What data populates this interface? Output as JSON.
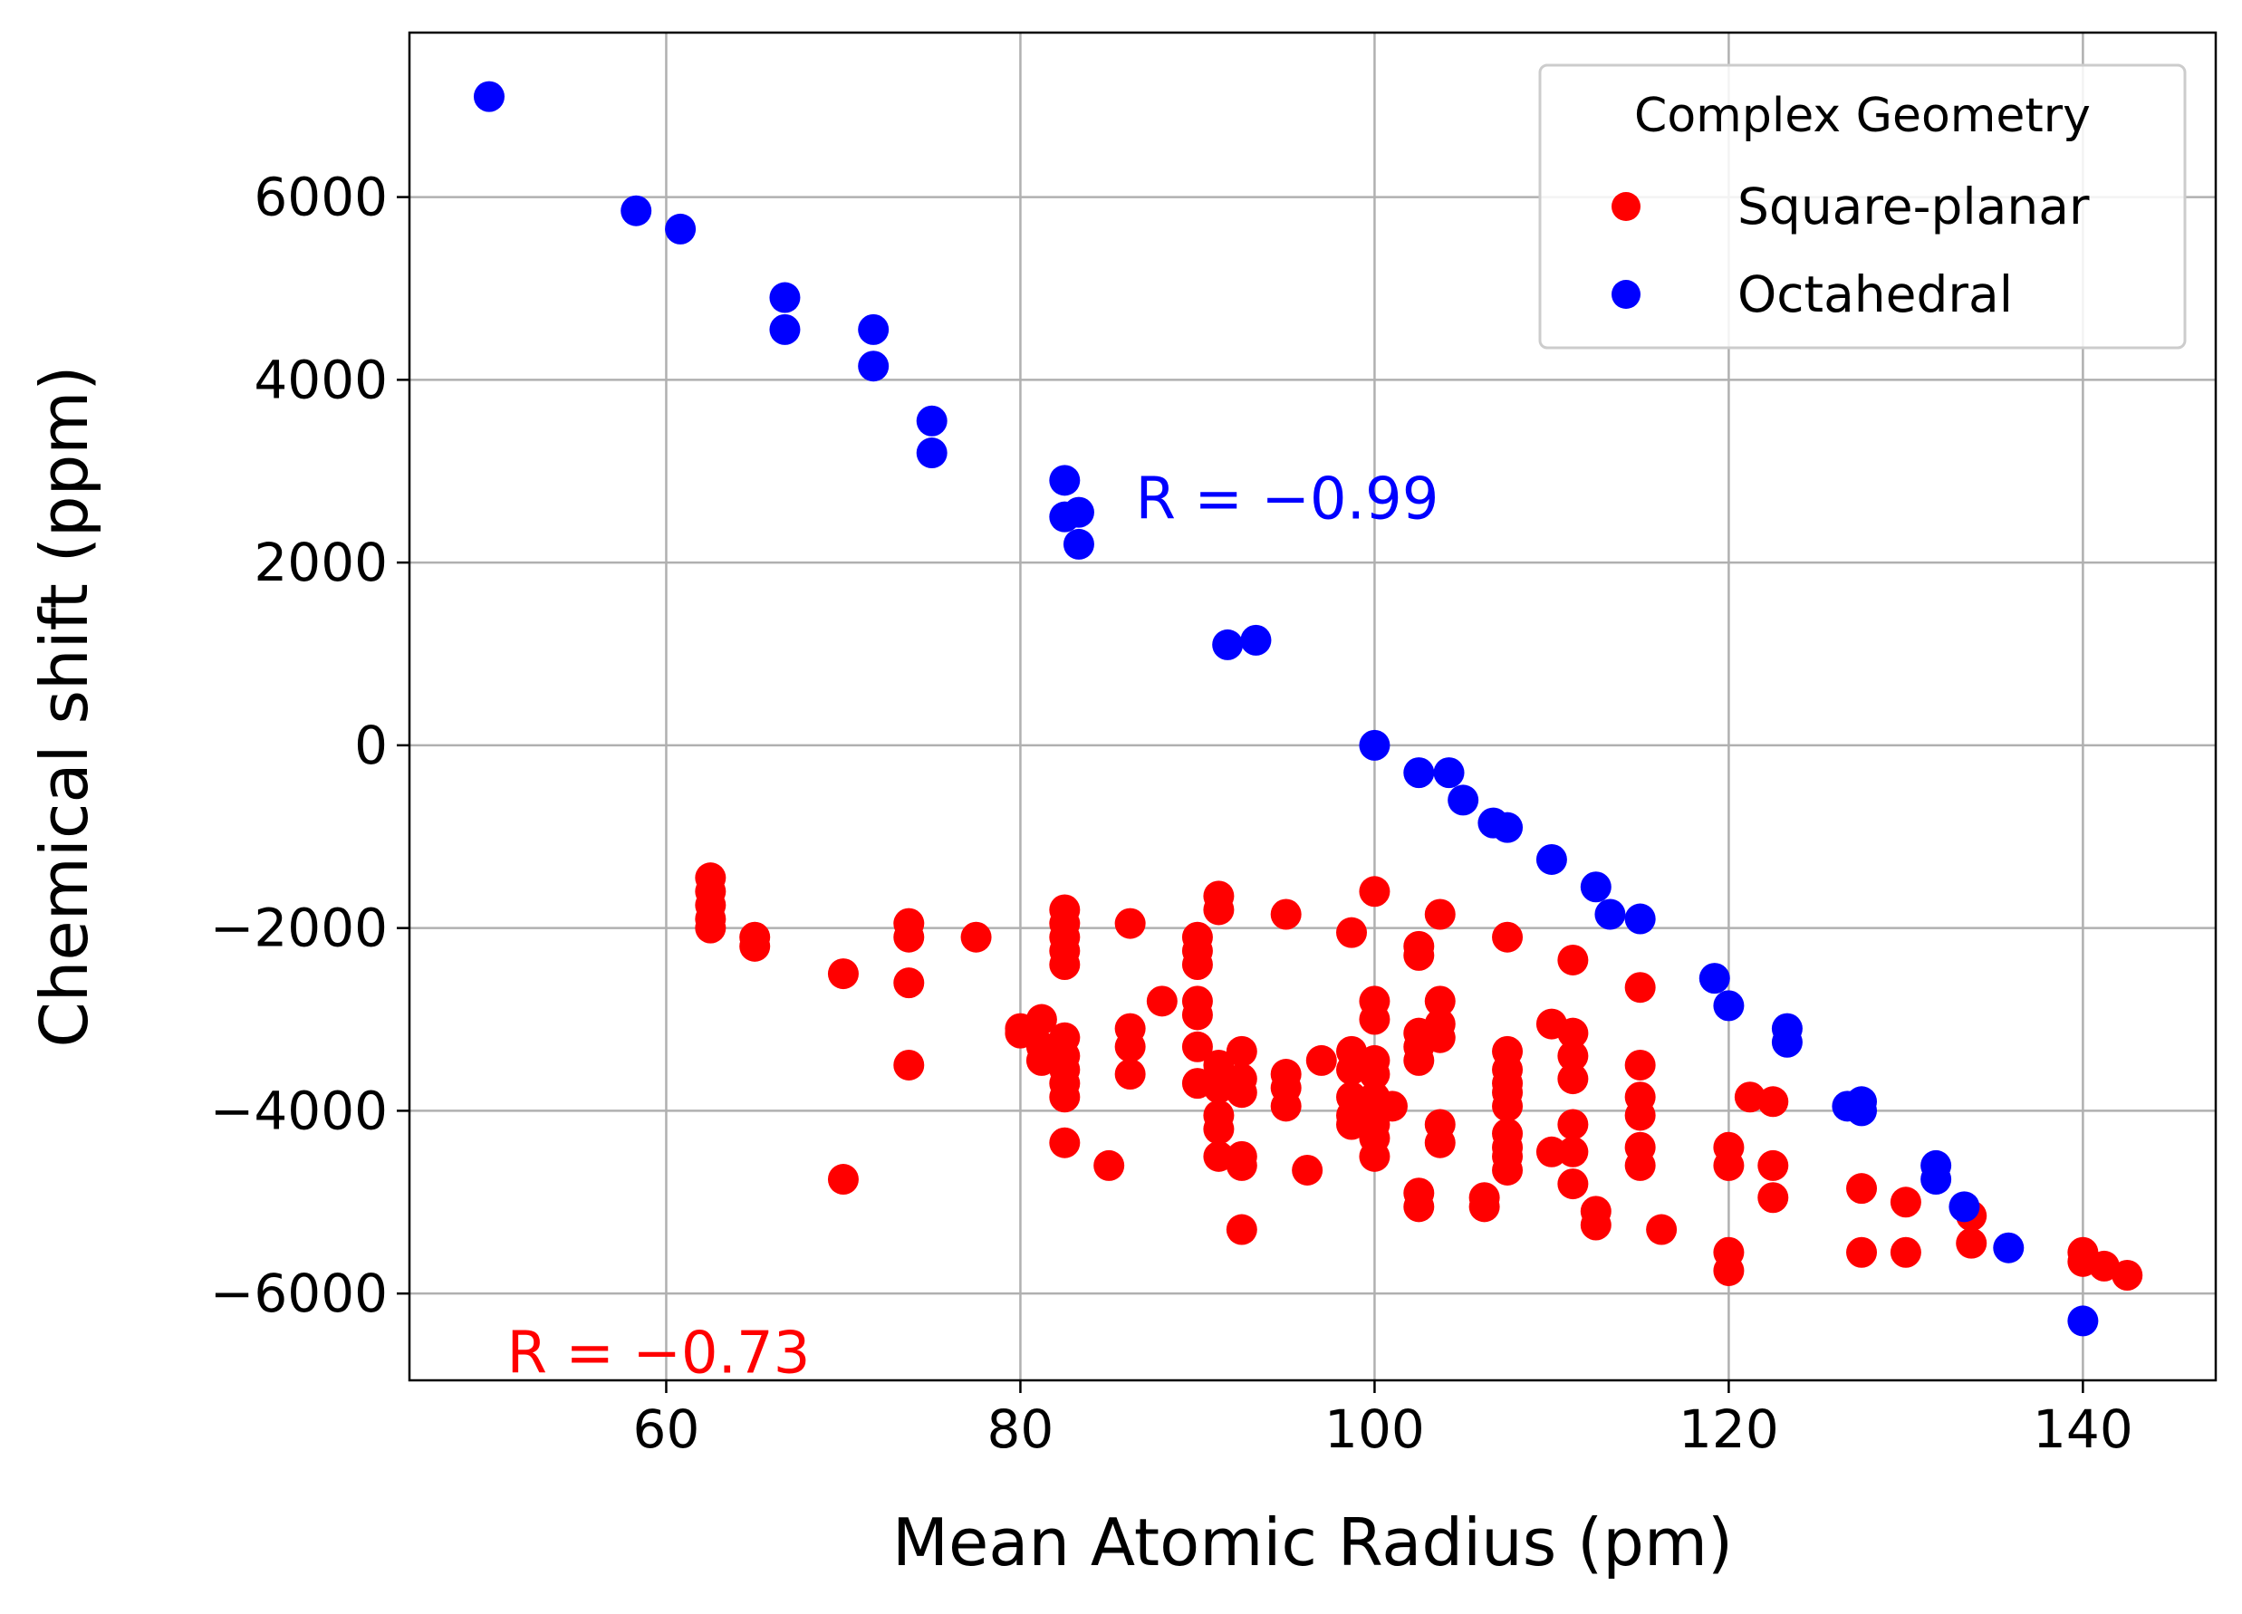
{
  "chart_data": {
    "type": "scatter",
    "xlabel": "Mean Atomic Radius (pm)",
    "ylabel": "Chemical shift (ppm)",
    "xlim": [
      45.5,
      147.5
    ],
    "ylim": [
      -6950,
      7800
    ],
    "xticks": [
      60,
      80,
      100,
      120,
      140
    ],
    "yticks": [
      -6000,
      -4000,
      -2000,
      0,
      2000,
      4000,
      6000
    ],
    "xtick_labels": [
      "60",
      "80",
      "100",
      "120",
      "140"
    ],
    "ytick_labels": [
      "−6000",
      "−4000",
      "−2000",
      "0",
      "2000",
      "4000",
      "6000"
    ],
    "grid": true,
    "legend": {
      "title": "Complex Geometry",
      "placement": "top-right"
    },
    "series": [
      {
        "name": "Square-planar",
        "color": "#ff0000",
        "points": [
          [
            62.5,
            -1450
          ],
          [
            62.5,
            -1600
          ],
          [
            62.5,
            -1750
          ],
          [
            62.5,
            -1900
          ],
          [
            62.5,
            -2000
          ],
          [
            65,
            -2100
          ],
          [
            65,
            -2200
          ],
          [
            70,
            -2500
          ],
          [
            70,
            -4750
          ],
          [
            73.7,
            -1950
          ],
          [
            73.7,
            -2100
          ],
          [
            73.7,
            -2600
          ],
          [
            73.7,
            -3500
          ],
          [
            77.5,
            -2100
          ],
          [
            80,
            -3100
          ],
          [
            80,
            -3150
          ],
          [
            81.2,
            -3000
          ],
          [
            81.2,
            -3300
          ],
          [
            81.2,
            -3450
          ],
          [
            82.5,
            -1800
          ],
          [
            82.5,
            -1950
          ],
          [
            82.5,
            -2100
          ],
          [
            82.5,
            -2250
          ],
          [
            82.5,
            -2400
          ],
          [
            82.5,
            -3200
          ],
          [
            82.5,
            -3400
          ],
          [
            82.5,
            -3550
          ],
          [
            82.5,
            -3700
          ],
          [
            82.5,
            -3850
          ],
          [
            82.5,
            -4350
          ],
          [
            85,
            -4600
          ],
          [
            86.2,
            -1950
          ],
          [
            86.2,
            -3100
          ],
          [
            86.2,
            -3300
          ],
          [
            86.2,
            -3600
          ],
          [
            88,
            -2800
          ],
          [
            90,
            -2100
          ],
          [
            90,
            -2250
          ],
          [
            90,
            -2400
          ],
          [
            90,
            -2800
          ],
          [
            90,
            -2950
          ],
          [
            90,
            -3300
          ],
          [
            90,
            -3700
          ],
          [
            91.2,
            -1650
          ],
          [
            91.2,
            -1800
          ],
          [
            91.2,
            -3500
          ],
          [
            91.2,
            -3750
          ],
          [
            91.2,
            -4050
          ],
          [
            91.2,
            -4200
          ],
          [
            91.2,
            -4500
          ],
          [
            92.5,
            -3350
          ],
          [
            92.5,
            -3650
          ],
          [
            92.5,
            -3800
          ],
          [
            92.5,
            -4500
          ],
          [
            92.5,
            -4600
          ],
          [
            92.5,
            -5300
          ],
          [
            95,
            -1850
          ],
          [
            95,
            -3600
          ],
          [
            95,
            -3750
          ],
          [
            95,
            -3950
          ],
          [
            96.2,
            -4650
          ],
          [
            97,
            -3450
          ],
          [
            98.7,
            -2050
          ],
          [
            98.7,
            -3350
          ],
          [
            98.7,
            -3550
          ],
          [
            98.7,
            -3850
          ],
          [
            98.7,
            -4050
          ],
          [
            98.7,
            -4150
          ],
          [
            100,
            -1600
          ],
          [
            100,
            -2800
          ],
          [
            100,
            -3000
          ],
          [
            100,
            -3450
          ],
          [
            100,
            -3600
          ],
          [
            100,
            -3850
          ],
          [
            100,
            -4000
          ],
          [
            100,
            -4150
          ],
          [
            100,
            -4300
          ],
          [
            100,
            -4500
          ],
          [
            101,
            -3950
          ],
          [
            102.5,
            -2200
          ],
          [
            102.5,
            -2300
          ],
          [
            102.5,
            -3150
          ],
          [
            102.5,
            -3300
          ],
          [
            102.5,
            -3450
          ],
          [
            102.5,
            -4900
          ],
          [
            102.5,
            -5050
          ],
          [
            103.7,
            -1850
          ],
          [
            103.7,
            -2800
          ],
          [
            103.7,
            -3050
          ],
          [
            103.7,
            -3200
          ],
          [
            103.7,
            -4150
          ],
          [
            103.7,
            -4350
          ],
          [
            106.2,
            -4950
          ],
          [
            106.2,
            -5050
          ],
          [
            107.5,
            -2100
          ],
          [
            107.5,
            -3350
          ],
          [
            107.5,
            -3550
          ],
          [
            107.5,
            -3700
          ],
          [
            107.5,
            -3800
          ],
          [
            107.5,
            -3950
          ],
          [
            107.5,
            -4250
          ],
          [
            107.5,
            -4400
          ],
          [
            107.5,
            -4500
          ],
          [
            107.5,
            -4650
          ],
          [
            110,
            -3050
          ],
          [
            110,
            -4450
          ],
          [
            111.2,
            -2350
          ],
          [
            111.2,
            -3150
          ],
          [
            111.2,
            -3400
          ],
          [
            111.2,
            -3650
          ],
          [
            111.2,
            -4150
          ],
          [
            111.2,
            -4450
          ],
          [
            111.2,
            -4800
          ],
          [
            112.5,
            -5100
          ],
          [
            112.5,
            -5250
          ],
          [
            115,
            -2650
          ],
          [
            115,
            -3500
          ],
          [
            115,
            -3850
          ],
          [
            115,
            -4050
          ],
          [
            115,
            -4400
          ],
          [
            115,
            -4600
          ],
          [
            116.2,
            -5300
          ],
          [
            120,
            -4400
          ],
          [
            120,
            -4600
          ],
          [
            120,
            -5550
          ],
          [
            120,
            -5750
          ],
          [
            121.2,
            -3850
          ],
          [
            122.5,
            -3900
          ],
          [
            122.5,
            -4600
          ],
          [
            122.5,
            -4950
          ],
          [
            127.5,
            -4850
          ],
          [
            127.5,
            -5550
          ],
          [
            130,
            -5000
          ],
          [
            130,
            -5550
          ],
          [
            133.7,
            -5150
          ],
          [
            133.7,
            -5450
          ],
          [
            140,
            -5550
          ],
          [
            140,
            -5650
          ],
          [
            141.2,
            -5700
          ],
          [
            142.5,
            -5800
          ]
        ]
      },
      {
        "name": "Octahedral",
        "color": "#0000ff",
        "points": [
          [
            50,
            7100
          ],
          [
            58.3,
            5850
          ],
          [
            60.8,
            5650
          ],
          [
            66.7,
            4900
          ],
          [
            66.7,
            4550
          ],
          [
            71.7,
            4550
          ],
          [
            71.7,
            4150
          ],
          [
            75,
            3550
          ],
          [
            75,
            3200
          ],
          [
            82.5,
            2900
          ],
          [
            82.5,
            2500
          ],
          [
            83.3,
            2550
          ],
          [
            83.3,
            2200
          ],
          [
            91.7,
            1100
          ],
          [
            93.3,
            1150
          ],
          [
            100,
            0
          ],
          [
            102.5,
            -300
          ],
          [
            104.2,
            -300
          ],
          [
            105,
            -600
          ],
          [
            106.7,
            -850
          ],
          [
            107.5,
            -900
          ],
          [
            110,
            -1250
          ],
          [
            112.5,
            -1550
          ],
          [
            113.3,
            -1850
          ],
          [
            115,
            -1900
          ],
          [
            119.2,
            -2550
          ],
          [
            120,
            -2850
          ],
          [
            123.3,
            -3100
          ],
          [
            123.3,
            -3250
          ],
          [
            126.7,
            -3950
          ],
          [
            127.5,
            -3900
          ],
          [
            127.5,
            -4000
          ],
          [
            131.7,
            -4600
          ],
          [
            131.7,
            -4750
          ],
          [
            133.3,
            -5050
          ],
          [
            135.8,
            -5500
          ],
          [
            140,
            -6300
          ]
        ]
      }
    ],
    "annotations": [
      {
        "text": "R = −0.99",
        "color": "#0000ff",
        "x": 86.5,
        "y": 2700
      },
      {
        "text": "R = −0.73",
        "color": "#ff0000",
        "x": 51,
        "y": -6650
      }
    ]
  }
}
